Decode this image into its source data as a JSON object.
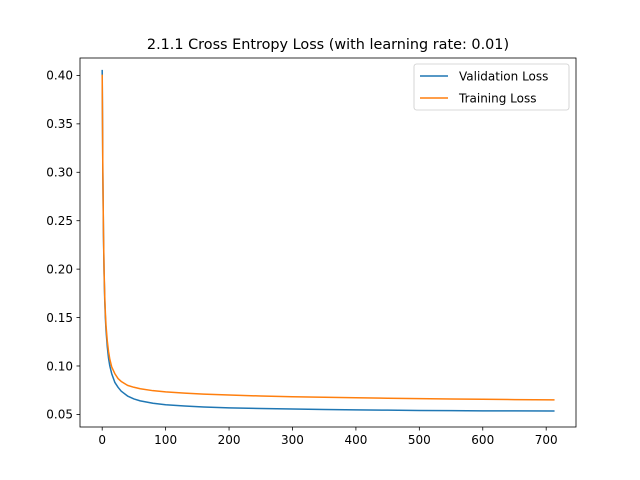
{
  "chart_data": {
    "type": "line",
    "title": "2.1.1 Cross Entropy Loss (with learning rate: 0.01)",
    "xlabel": "",
    "ylabel": "",
    "xlim": [
      -35,
      747
    ],
    "ylim": [
      0.037,
      0.418
    ],
    "x_ticks": [
      0,
      100,
      200,
      300,
      400,
      500,
      600,
      700
    ],
    "x_tick_labels": [
      "0",
      "100",
      "200",
      "300",
      "400",
      "500",
      "600",
      "700"
    ],
    "y_ticks": [
      0.05,
      0.1,
      0.15,
      0.2,
      0.25,
      0.3,
      0.35,
      0.4
    ],
    "y_tick_labels": [
      "0.05",
      "0.10",
      "0.15",
      "0.20",
      "0.25",
      "0.30",
      "0.35",
      "0.40"
    ],
    "grid": false,
    "legend_position": "top-right",
    "series": [
      {
        "name": "Validation Loss",
        "color": "#1f77b4",
        "x": [
          0,
          1,
          2,
          3,
          4,
          5,
          6,
          8,
          10,
          12,
          15,
          20,
          25,
          30,
          40,
          50,
          60,
          80,
          100,
          130,
          160,
          200,
          250,
          300,
          350,
          400,
          450,
          500,
          550,
          600,
          650,
          712
        ],
        "y": [
          0.405,
          0.3,
          0.235,
          0.195,
          0.168,
          0.15,
          0.137,
          0.12,
          0.108,
          0.1,
          0.092,
          0.083,
          0.078,
          0.074,
          0.069,
          0.066,
          0.064,
          0.0615,
          0.06,
          0.0587,
          0.0577,
          0.0568,
          0.0561,
          0.0556,
          0.0551,
          0.0547,
          0.0544,
          0.0541,
          0.0539,
          0.0537,
          0.0536,
          0.0535
        ]
      },
      {
        "name": "Training Loss",
        "color": "#ff7f0e",
        "x": [
          0,
          1,
          2,
          3,
          4,
          5,
          6,
          8,
          10,
          12,
          15,
          20,
          25,
          30,
          40,
          50,
          60,
          80,
          100,
          130,
          160,
          200,
          250,
          300,
          350,
          400,
          450,
          500,
          550,
          600,
          650,
          712
        ],
        "y": [
          0.4,
          0.3,
          0.238,
          0.198,
          0.172,
          0.155,
          0.142,
          0.126,
          0.115,
          0.107,
          0.099,
          0.092,
          0.087,
          0.084,
          0.08,
          0.078,
          0.0765,
          0.0745,
          0.0733,
          0.072,
          0.071,
          0.07,
          0.069,
          0.0683,
          0.0677,
          0.0672,
          0.0667,
          0.0663,
          0.0659,
          0.0656,
          0.0653,
          0.065
        ]
      }
    ]
  }
}
